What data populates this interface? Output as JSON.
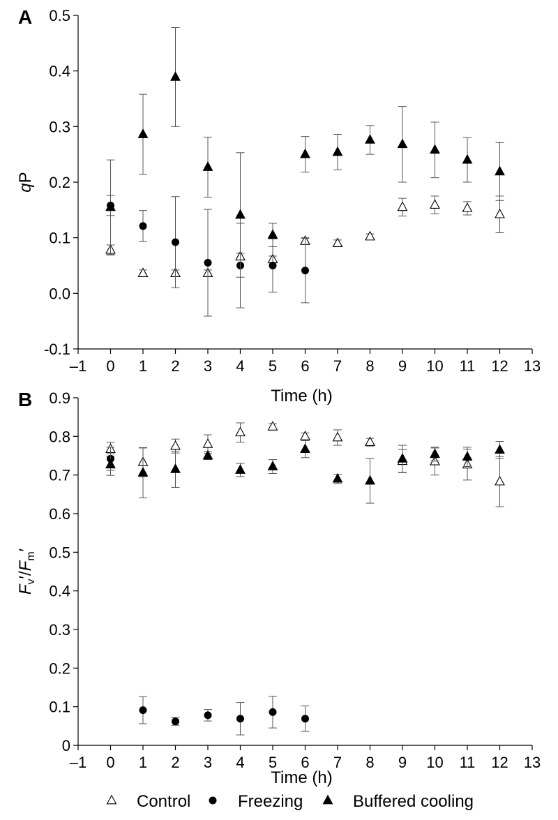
{
  "chart_data": [
    {
      "panel": "A",
      "type": "scatter",
      "xlabel": "Time (h)",
      "ylabel_parts": [
        {
          "text": "q",
          "italic": true
        },
        {
          "text": "P",
          "italic": false
        }
      ],
      "xlim": [
        -1,
        13
      ],
      "ylim": [
        -0.1,
        0.5
      ],
      "xticks": [
        -1,
        0,
        1,
        2,
        3,
        4,
        5,
        6,
        7,
        8,
        9,
        10,
        11,
        12,
        13
      ],
      "xtick_labels": [
        "–1",
        "0",
        "1",
        "2",
        "3",
        "4",
        "5",
        "6",
        "7",
        "8",
        "9",
        "10",
        "11",
        "12",
        "13"
      ],
      "yticks": [
        -0.1,
        0.0,
        0.1,
        0.2,
        0.3,
        0.4,
        0.5
      ],
      "ytick_labels": [
        "-0.1",
        "0.0",
        "0.1",
        "0.2",
        "0.3",
        "0.4",
        "0.5"
      ],
      "grid": false,
      "series": [
        {
          "name": "Control",
          "marker": "open-triangle",
          "x": [
            0,
            1,
            2,
            3,
            4,
            5,
            6,
            7,
            8,
            9,
            10,
            11,
            12
          ],
          "y": [
            0.078,
            0.036,
            0.036,
            0.036,
            0.066,
            0.061,
            0.094,
            0.09,
            0.102,
            0.155,
            0.159,
            0.153,
            0.142
          ],
          "err": [
            0.009,
            0.006,
            0.006,
            0.006,
            0.006,
            0.006,
            0.006,
            0.006,
            0.005,
            0.016,
            0.016,
            0.012,
            0.033
          ]
        },
        {
          "name": "Freezing",
          "marker": "filled-circle",
          "x": [
            0,
            1,
            2,
            3,
            4,
            5,
            6
          ],
          "y": [
            0.158,
            0.121,
            0.092,
            0.055,
            0.05,
            0.05,
            0.041
          ],
          "err": [
            0.018,
            0.028,
            0.082,
            0.096,
            0.076,
            0.048,
            0.058
          ]
        },
        {
          "name": "Buffered cooling",
          "marker": "filled-triangle",
          "x": [
            0,
            1,
            2,
            3,
            4,
            5,
            6,
            7,
            8,
            9,
            10,
            11,
            12
          ],
          "y": [
            0.155,
            0.286,
            0.389,
            0.227,
            0.141,
            0.105,
            0.25,
            0.254,
            0.276,
            0.268,
            0.258,
            0.24,
            0.219
          ],
          "err": [
            0.085,
            0.072,
            0.089,
            0.054,
            0.112,
            0.021,
            0.032,
            0.032,
            0.026,
            0.068,
            0.05,
            0.04,
            0.052
          ]
        }
      ]
    },
    {
      "panel": "B",
      "type": "scatter",
      "xlabel": "Time (h)",
      "ylabel_parts": [
        {
          "text": "F",
          "italic": true
        },
        {
          "text": "v",
          "italic": false,
          "sub": true
        },
        {
          "text": "′/",
          "italic": false
        },
        {
          "text": "F",
          "italic": true
        },
        {
          "text": "m",
          "italic": false,
          "sub": true
        },
        {
          "text": "′",
          "italic": false
        }
      ],
      "xlim": [
        -1,
        13
      ],
      "ylim": [
        0,
        0.9
      ],
      "xticks": [
        -1,
        0,
        1,
        2,
        3,
        4,
        5,
        6,
        7,
        8,
        9,
        10,
        11,
        12,
        13
      ],
      "xtick_labels": [
        "–1",
        "0",
        "1",
        "2",
        "3",
        "4",
        "5",
        "6",
        "7",
        "8",
        "9",
        "10",
        "11",
        "12",
        "13"
      ],
      "yticks": [
        0,
        0.1,
        0.2,
        0.3,
        0.4,
        0.5,
        0.6,
        0.7,
        0.8,
        0.9
      ],
      "ytick_labels": [
        "0",
        "0.1",
        "0.2",
        "0.3",
        "0.4",
        "0.5",
        "0.6",
        "0.7",
        "0.8",
        "0.9"
      ],
      "grid": false,
      "series": [
        {
          "name": "Control",
          "marker": "open-triangle",
          "x": [
            0,
            1,
            2,
            3,
            4,
            5,
            6,
            7,
            8,
            9,
            10,
            11,
            12
          ],
          "y": [
            0.767,
            0.733,
            0.775,
            0.78,
            0.81,
            0.825,
            0.8,
            0.797,
            0.785,
            0.736,
            0.735,
            0.727,
            0.683
          ],
          "err": [
            0.018,
            0.037,
            0.018,
            0.024,
            0.025,
            0.008,
            0.009,
            0.02,
            0.01,
            0.03,
            0.035,
            0.04,
            0.065
          ]
        },
        {
          "name": "Freezing",
          "marker": "filled-circle",
          "x": [
            0,
            1,
            2,
            3,
            4,
            5,
            6
          ],
          "y": [
            0.742,
            0.091,
            0.062,
            0.078,
            0.069,
            0.086,
            0.069
          ],
          "err": [
            0.03,
            0.035,
            0.01,
            0.015,
            0.042,
            0.041,
            0.033
          ]
        },
        {
          "name": "Buffered cooling",
          "marker": "filled-triangle",
          "x": [
            0,
            1,
            2,
            3,
            4,
            5,
            6,
            7,
            8,
            9,
            10,
            11,
            12
          ],
          "y": [
            0.727,
            0.706,
            0.715,
            0.75,
            0.713,
            0.722,
            0.767,
            0.69,
            0.685,
            0.742,
            0.754,
            0.747,
            0.765
          ],
          "err": [
            0.028,
            0.065,
            0.047,
            0.01,
            0.017,
            0.018,
            0.022,
            0.012,
            0.058,
            0.035,
            0.018,
            0.025,
            0.022
          ]
        }
      ]
    }
  ],
  "legend": {
    "placement": "bottom",
    "items": [
      {
        "label": "Control",
        "marker": "open-triangle"
      },
      {
        "label": "Freezing",
        "marker": "filled-circle"
      },
      {
        "label": "Buffered cooling",
        "marker": "filled-triangle"
      }
    ]
  }
}
